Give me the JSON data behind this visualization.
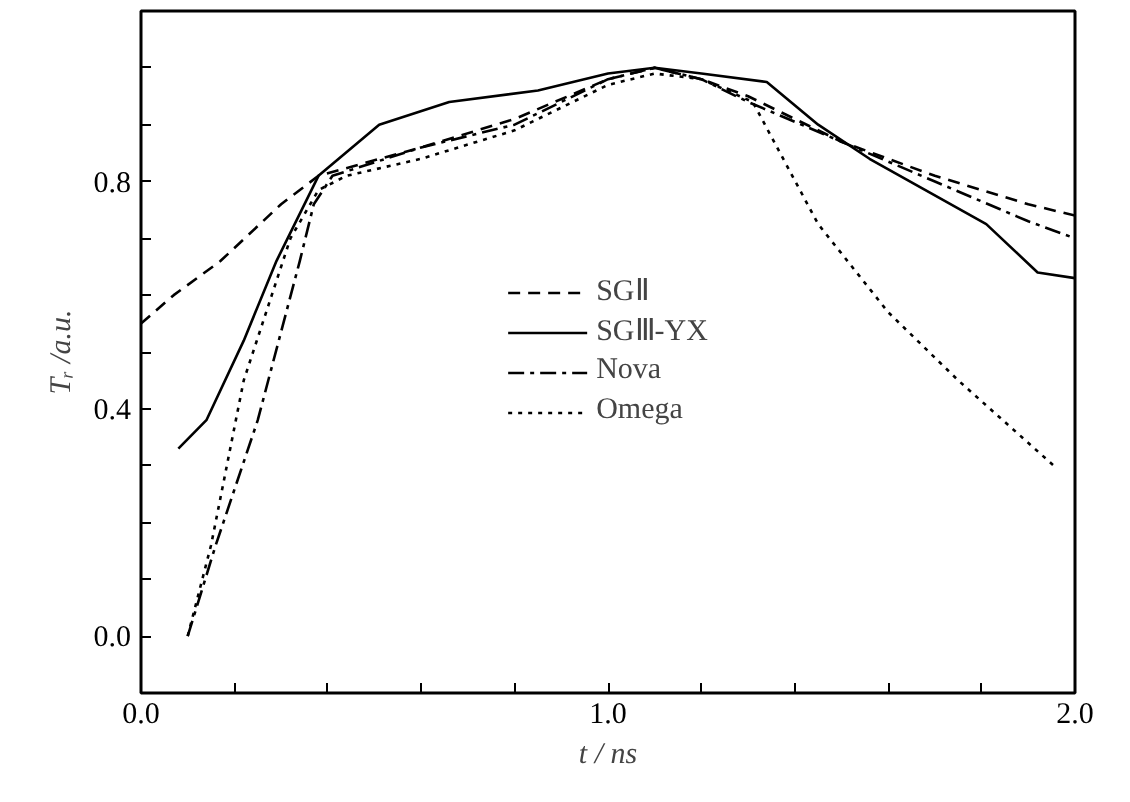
{
  "chart_data": {
    "type": "line",
    "xlabel": "t / ns",
    "ylabel": "Tᵣ /a.u.",
    "xlim": [
      0,
      2
    ],
    "ylim": [
      -0.1,
      1.1
    ],
    "xticks": [
      {
        "value": 0,
        "label": "0.0"
      },
      {
        "value": 0.2,
        "label": null
      },
      {
        "value": 0.4,
        "label": null
      },
      {
        "value": 0.6,
        "label": null
      },
      {
        "value": 0.8,
        "label": null
      },
      {
        "value": 1.0,
        "label": "1.0"
      },
      {
        "value": 1.2,
        "label": null
      },
      {
        "value": 1.4,
        "label": null
      },
      {
        "value": 1.6,
        "label": null
      },
      {
        "value": 1.8,
        "label": null
      },
      {
        "value": 2.0,
        "label": "2.0"
      }
    ],
    "yticks": [
      {
        "value": 0,
        "label": "0.0"
      },
      {
        "value": 0.1,
        "label": null
      },
      {
        "value": 0.2,
        "label": null
      },
      {
        "value": 0.3,
        "label": null
      },
      0.4,
      {
        "value": 0.5,
        "label": null
      },
      {
        "value": 0.6,
        "label": null
      },
      {
        "value": 0.7,
        "label": null
      },
      0.8,
      {
        "value": 0.9,
        "label": null
      },
      {
        "value": 1.0,
        "label": null
      }
    ],
    "grid": false,
    "legend": "center",
    "series": [
      {
        "name": "SGⅡ",
        "color": "#000000",
        "line_style": "dashed",
        "x": [
          0.0,
          0.07,
          0.17,
          0.3,
          0.38,
          0.6,
          0.8,
          1.0,
          1.1,
          1.2,
          1.3,
          1.5,
          1.7,
          1.9,
          2.0
        ],
        "values": [
          0.55,
          0.6,
          0.66,
          0.76,
          0.81,
          0.86,
          0.91,
          0.98,
          1.0,
          0.98,
          0.95,
          0.87,
          0.81,
          0.76,
          0.74
        ]
      },
      {
        "name": "SGⅢ-YX",
        "color": "#000000",
        "line_style": "solid",
        "x": [
          0.08,
          0.14,
          0.22,
          0.29,
          0.38,
          0.51,
          0.66,
          0.85,
          1.0,
          1.1,
          1.2,
          1.34,
          1.45,
          1.56,
          1.81,
          1.92,
          2.0
        ],
        "values": [
          0.33,
          0.38,
          0.52,
          0.66,
          0.81,
          0.9,
          0.94,
          0.96,
          0.99,
          1.0,
          0.99,
          0.975,
          0.9,
          0.84,
          0.725,
          0.64,
          0.63
        ]
      },
      {
        "name": "Nova",
        "color": "#000000",
        "line_style": "dashdot",
        "x": [
          0.1,
          0.16,
          0.25,
          0.34,
          0.37,
          0.41,
          0.6,
          0.8,
          1.0,
          1.1,
          1.2,
          1.3,
          1.5,
          1.7,
          1.9,
          2.0
        ],
        "values": [
          0.0,
          0.16,
          0.38,
          0.66,
          0.76,
          0.81,
          0.86,
          0.9,
          0.98,
          1.0,
          0.98,
          0.94,
          0.87,
          0.8,
          0.73,
          0.7
        ]
      },
      {
        "name": "Omega",
        "color": "#000000",
        "line_style": "dotted",
        "x": [
          0.1,
          0.15,
          0.22,
          0.32,
          0.38,
          0.44,
          0.6,
          0.8,
          1.0,
          1.1,
          1.2,
          1.31,
          1.45,
          1.6,
          1.75,
          1.96
        ],
        "values": [
          0.0,
          0.16,
          0.45,
          0.7,
          0.785,
          0.81,
          0.84,
          0.89,
          0.97,
          0.99,
          0.98,
          0.94,
          0.725,
          0.57,
          0.45,
          0.296
        ]
      }
    ]
  }
}
